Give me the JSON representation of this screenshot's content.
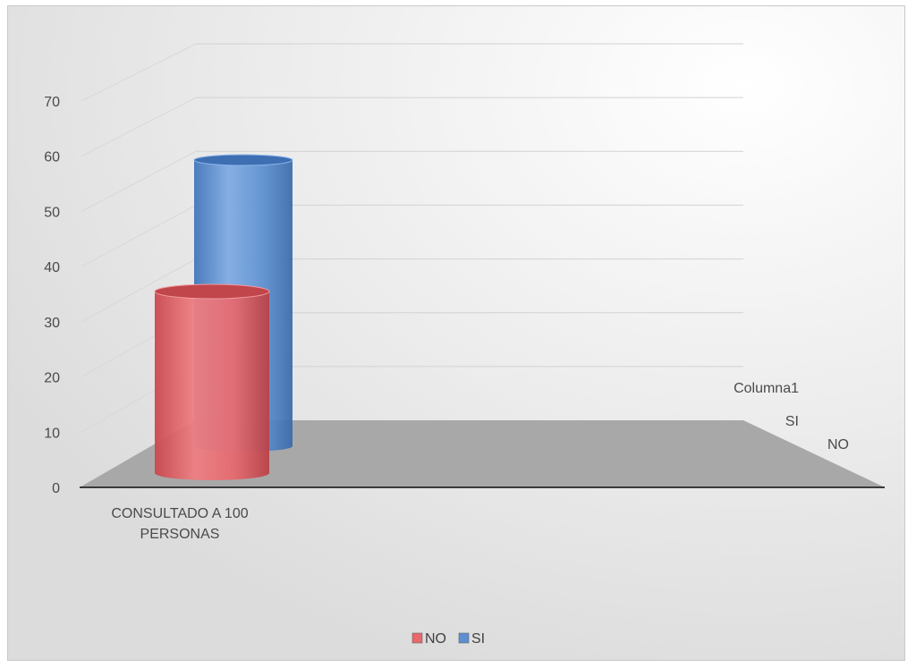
{
  "chart_data": {
    "type": "bar",
    "title": "",
    "xlabel": "",
    "ylabel": "",
    "categories": [
      "CONSULTADO A 100 PERSONAS"
    ],
    "category_lines": [
      "CONSULTADO A 100",
      "PERSONAS"
    ],
    "series": [
      {
        "name": "NO",
        "values": [
          35
        ]
      },
      {
        "name": "SI",
        "values": [
          50
        ]
      }
    ],
    "depth_labels": [
      "Columna1",
      "SI",
      "NO"
    ],
    "ylim": [
      0,
      70
    ],
    "yticks": [
      0,
      10,
      20,
      30,
      40,
      50,
      60,
      70
    ],
    "grid": true,
    "legend": "bottom",
    "colors": {
      "NO": "#e8686c",
      "SI": "#5b8fd0"
    }
  }
}
